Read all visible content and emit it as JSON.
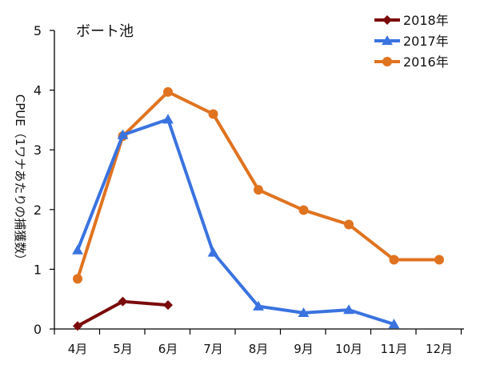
{
  "chart_data": {
    "type": "line",
    "title": "ボート池",
    "xlabel": "",
    "ylabel": "CPUE（1ワナあたりの捕獲数）",
    "categories": [
      "4月",
      "5月",
      "6月",
      "7月",
      "8月",
      "9月",
      "10月",
      "11月",
      "12月"
    ],
    "ylim": [
      0,
      5
    ],
    "yticks": [
      "0",
      "1",
      "2",
      "3",
      "4",
      "5"
    ],
    "grid": false,
    "legend_position": "top-right",
    "series": [
      {
        "name": "2018年",
        "color": "#7b0a0a",
        "marker": "diamond",
        "values": [
          0.05,
          0.46,
          0.4,
          null,
          null,
          null,
          null,
          null,
          null
        ]
      },
      {
        "name": "2017年",
        "color": "#3a73e0",
        "marker": "triangle",
        "values": [
          1.32,
          3.25,
          3.51,
          1.28,
          0.38,
          0.27,
          0.32,
          0.08,
          null
        ]
      },
      {
        "name": "2016年",
        "color": "#e07320",
        "marker": "circle",
        "values": [
          0.84,
          3.23,
          3.97,
          3.6,
          2.33,
          1.99,
          1.75,
          1.16,
          1.16
        ]
      }
    ]
  }
}
